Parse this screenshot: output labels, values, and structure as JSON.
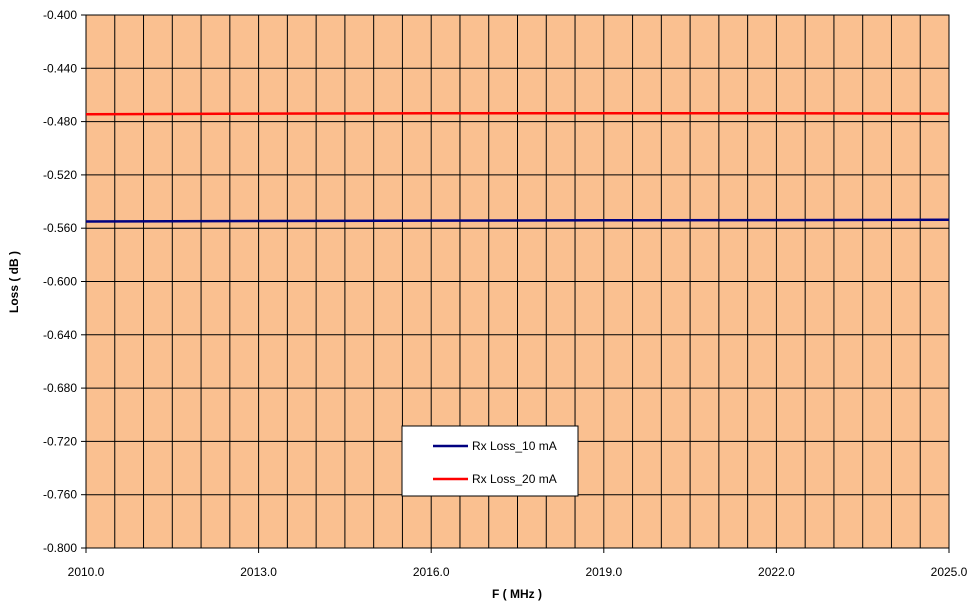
{
  "chart_data": {
    "type": "line",
    "title": "",
    "xlabel": "F ( MHz )",
    "ylabel": "Loss ( dB )",
    "xlim": [
      2010.0,
      2025.0
    ],
    "ylim": [
      -0.8,
      -0.4
    ],
    "x_tick_labels": [
      "2010.0",
      "2013.0",
      "2016.0",
      "2019.0",
      "2022.0",
      "2025.0"
    ],
    "y_tick_labels": [
      "-0.400",
      "-0.440",
      "-0.480",
      "-0.520",
      "-0.560",
      "-0.600",
      "-0.640",
      "-0.680",
      "-0.720",
      "-0.760",
      "-0.800"
    ],
    "grid": true,
    "plot_background": "#FAC090",
    "legend_position": "bottom-center",
    "series": [
      {
        "name": "Rx Loss_10 mA",
        "color": "#000080",
        "x": [
          2010.0,
          2013.0,
          2016.0,
          2019.0,
          2022.0,
          2025.0
        ],
        "values": [
          -0.555,
          -0.5546,
          -0.5543,
          -0.5541,
          -0.5539,
          -0.5537
        ]
      },
      {
        "name": "Rx Loss_20 mA",
        "color": "#FF0000",
        "x": [
          2010.0,
          2013.0,
          2016.0,
          2019.0,
          2022.0,
          2025.0
        ],
        "values": [
          -0.4745,
          -0.474,
          -0.4737,
          -0.4737,
          -0.4738,
          -0.474
        ]
      }
    ]
  }
}
